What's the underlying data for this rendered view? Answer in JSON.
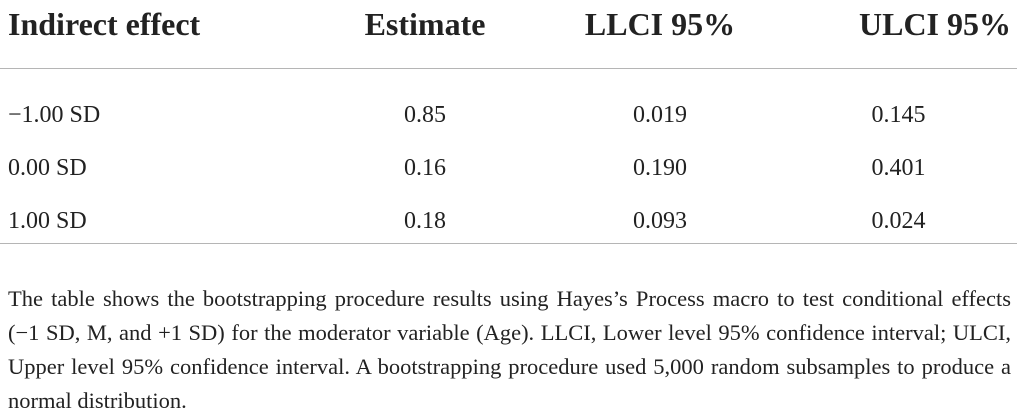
{
  "table": {
    "headers": [
      "Indirect effect",
      "Estimate",
      "LLCI 95%",
      "ULCI 95%"
    ],
    "rows": [
      [
        "−1.00 SD",
        "0.85",
        "0.019",
        "0.145"
      ],
      [
        "0.00 SD",
        "0.16",
        "0.190",
        "0.401"
      ],
      [
        "1.00 SD",
        "0.18",
        "0.093",
        "0.024"
      ]
    ]
  },
  "note": "The table shows the bootstrapping procedure results using Hayes’s Process macro to test conditional effects (−1 SD, M, and +1 SD) for the moderator variable (Age). LLCI, Lower level 95% confidence interval; ULCI, Upper level 95% confidence interval. A bootstrapping procedure used 5,000 random subsamples to produce a normal distribution."
}
